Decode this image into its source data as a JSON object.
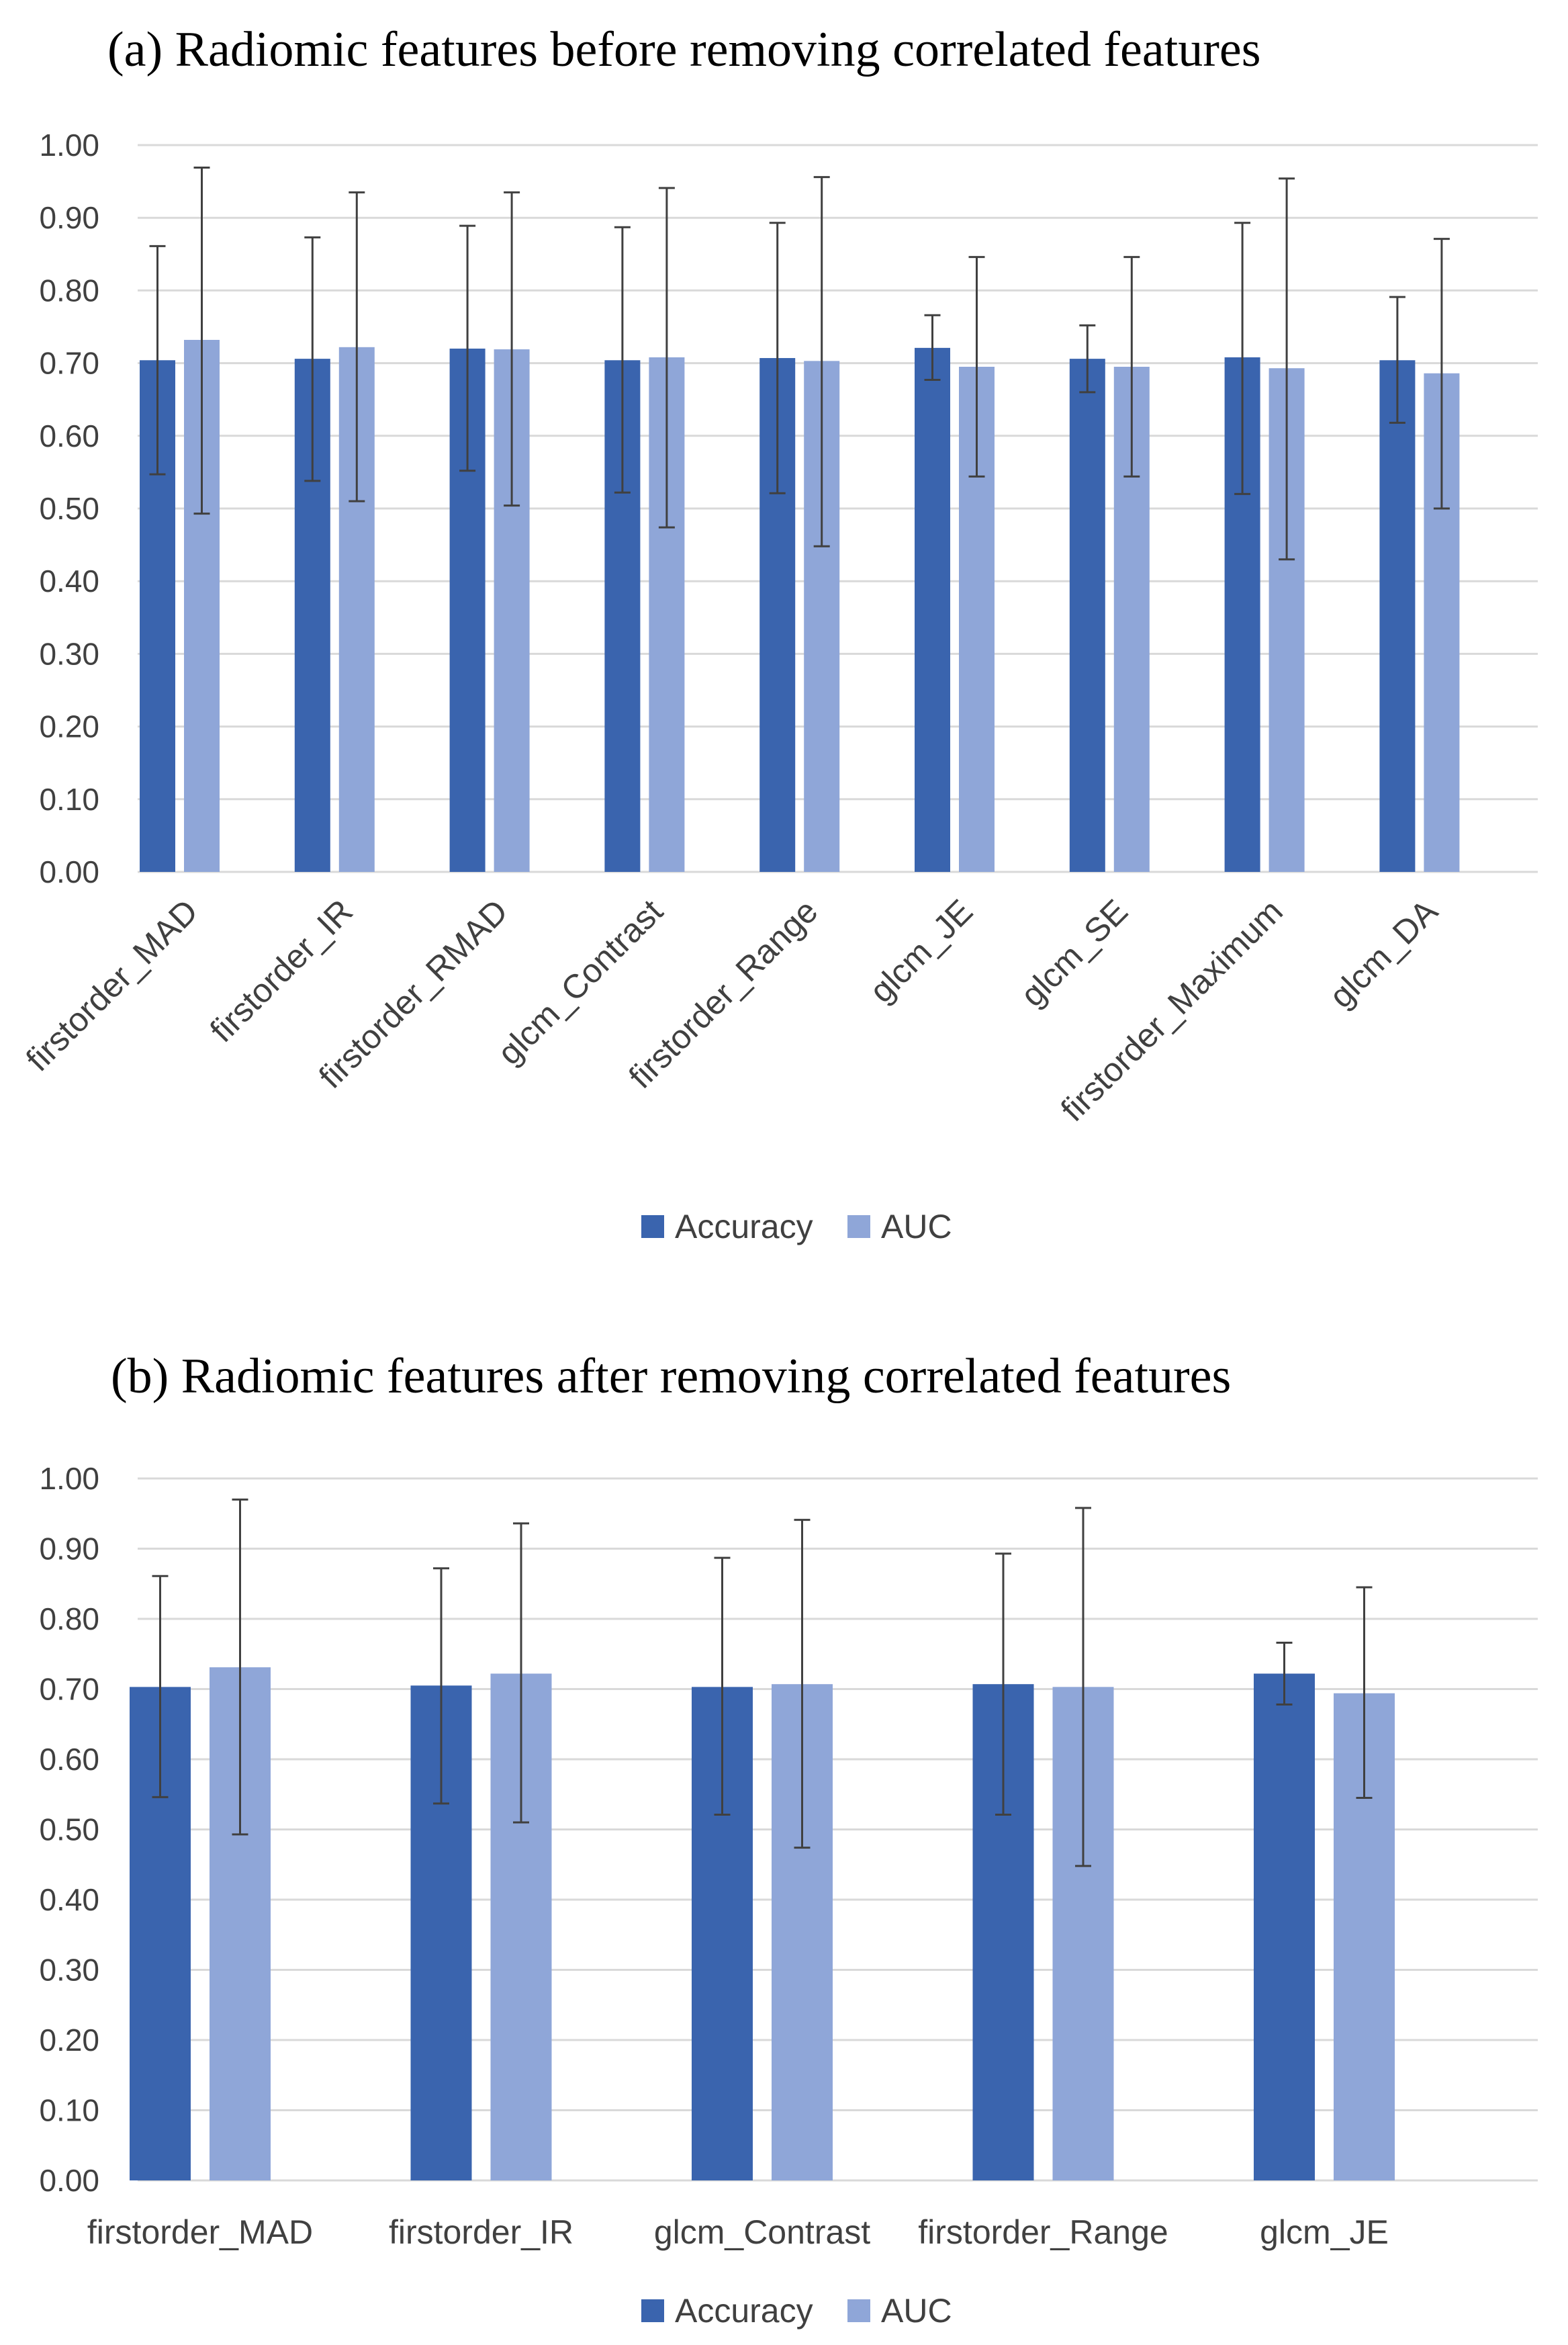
{
  "chart_data": [
    {
      "type": "bar",
      "title": "(a)  Radiomic features before removing correlated features",
      "categories": [
        "firstorder_MAD",
        "firstorder_IR",
        "firstorder_RMAD",
        "glcm_Contrast",
        "firstorder_Range",
        "glcm_JE",
        "glcm_SE",
        "firstorder_Maximum",
        "glcm_DA"
      ],
      "series": [
        {
          "name": "Accuracy",
          "color": "#3a64ae",
          "values": [
            0.704,
            0.706,
            0.72,
            0.704,
            0.707,
            0.721,
            0.706,
            0.708,
            0.704
          ],
          "error_low": [
            0.547,
            0.538,
            0.552,
            0.522,
            0.521,
            0.677,
            0.66,
            0.52,
            0.618
          ],
          "error_high": [
            0.861,
            0.873,
            0.889,
            0.887,
            0.893,
            0.766,
            0.752,
            0.893,
            0.791
          ]
        },
        {
          "name": "AUC",
          "color": "#8fa6d8",
          "values": [
            0.732,
            0.722,
            0.719,
            0.708,
            0.703,
            0.695,
            0.695,
            0.693,
            0.686
          ],
          "error_low": [
            0.493,
            0.51,
            0.504,
            0.474,
            0.448,
            0.544,
            0.544,
            0.43,
            0.5
          ],
          "error_high": [
            0.969,
            0.935,
            0.935,
            0.941,
            0.956,
            0.846,
            0.846,
            0.954,
            0.871
          ]
        }
      ],
      "ylim": [
        0,
        1
      ],
      "yticks": [
        "0.00",
        "0.10",
        "0.20",
        "0.30",
        "0.40",
        "0.50",
        "0.60",
        "0.70",
        "0.80",
        "0.90",
        "1.00"
      ],
      "grid": true,
      "xlabel_rotation": -45,
      "legend": "bottom"
    },
    {
      "type": "bar",
      "title": "(b)  Radiomic features after removing correlated features",
      "categories": [
        "firstorder_MAD",
        "firstorder_IR",
        "glcm_Contrast",
        "firstorder_Range",
        "glcm_JE"
      ],
      "series": [
        {
          "name": "Accuracy",
          "color": "#3a64ae",
          "values": [
            0.703,
            0.705,
            0.703,
            0.707,
            0.722
          ],
          "error_low": [
            0.546,
            0.537,
            0.521,
            0.521,
            0.678
          ],
          "error_high": [
            0.861,
            0.872,
            0.887,
            0.893,
            0.766
          ]
        },
        {
          "name": "AUC",
          "color": "#8fa6d8",
          "values": [
            0.731,
            0.722,
            0.707,
            0.703,
            0.694
          ],
          "error_low": [
            0.493,
            0.51,
            0.474,
            0.448,
            0.545
          ],
          "error_high": [
            0.97,
            0.936,
            0.941,
            0.958,
            0.845
          ]
        }
      ],
      "ylim": [
        0,
        1
      ],
      "yticks": [
        "0.00",
        "0.10",
        "0.20",
        "0.30",
        "0.40",
        "0.50",
        "0.60",
        "0.70",
        "0.80",
        "0.90",
        "1.00"
      ],
      "grid": true,
      "xlabel_rotation": 0,
      "legend": "bottom"
    }
  ]
}
